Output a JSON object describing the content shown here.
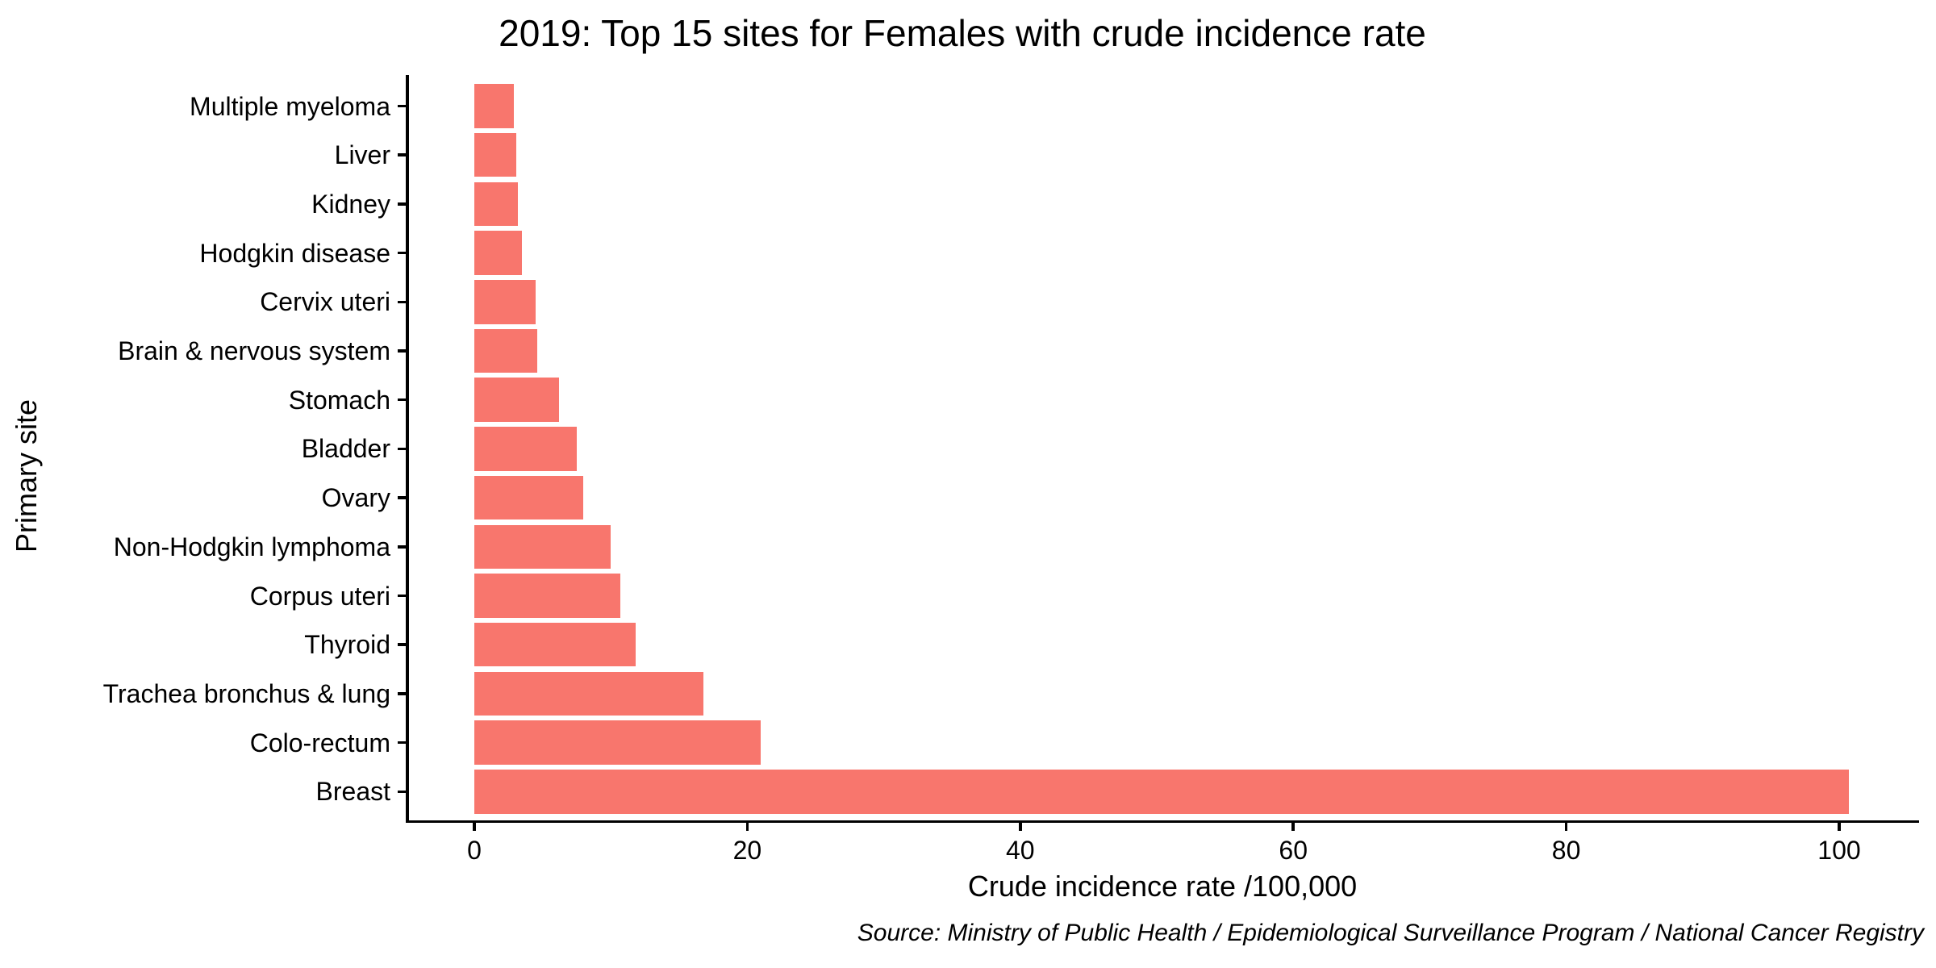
{
  "chart_data": {
    "type": "bar",
    "orientation": "horizontal",
    "title": "2019: Top 15 sites for Females with crude incidence rate",
    "xlabel": "Crude incidence rate /100,000",
    "ylabel": "Primary site",
    "caption": "Source: Ministry of Public Health / Epidemiological Surveillance Program / National Cancer Registry",
    "categories": [
      "Multiple myeloma",
      "Liver",
      "Kidney",
      "Hodgkin disease",
      "Cervix uteri",
      "Brain & nervous system",
      "Stomach",
      "Bladder",
      "Ovary",
      "Non-Hodgkin lymphoma",
      "Corpus uteri",
      "Thyroid",
      "Trachea bronchus & lung",
      "Colo-rectum",
      "Breast"
    ],
    "values": [
      2.9,
      3.1,
      3.2,
      3.5,
      4.5,
      4.6,
      6.2,
      7.5,
      8.0,
      10.0,
      10.7,
      11.8,
      16.8,
      21.0,
      100.7
    ],
    "x_tick_values": [
      0,
      20,
      40,
      60,
      80,
      100
    ],
    "x_tick_labels": [
      "0",
      "20",
      "40",
      "60",
      "80",
      "100"
    ],
    "xlim": [
      0,
      100.7
    ],
    "grid": false,
    "legend": "none",
    "bar_color": "#F8766D",
    "axis_color": "#000000",
    "background_color": "#FFFFFF"
  }
}
